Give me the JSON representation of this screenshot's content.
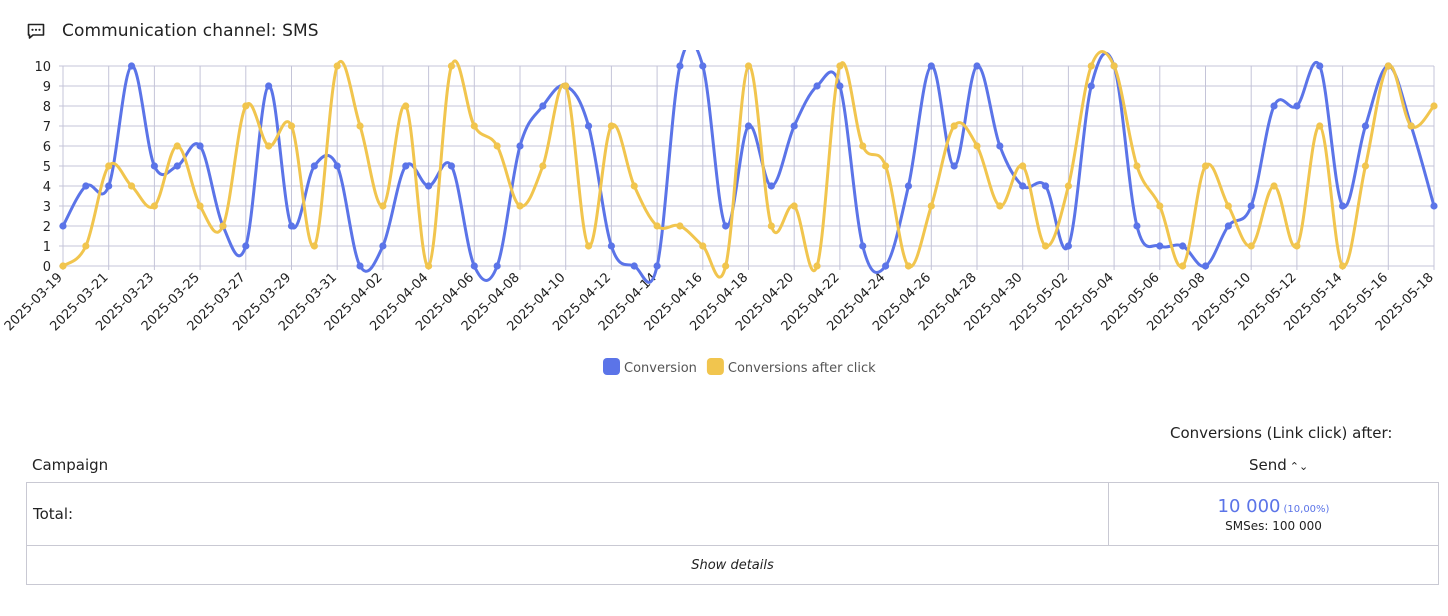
{
  "page": {
    "title": "Communication channel: SMS",
    "icon": "chat-message-icon"
  },
  "colors": {
    "conversion": "#5b74e8",
    "conversions_after_click": "#f1c54e",
    "grid": "#c4c4d8"
  },
  "chart_data": {
    "type": "line",
    "title": "",
    "xlabel": "",
    "ylabel": "",
    "ylim": [
      0,
      10
    ],
    "yticks": [
      0,
      1,
      2,
      3,
      4,
      5,
      6,
      7,
      8,
      9,
      10
    ],
    "grid": true,
    "legend_position": "bottom",
    "x": [
      "2025-03-19",
      "2025-03-20",
      "2025-03-21",
      "2025-03-22",
      "2025-03-23",
      "2025-03-24",
      "2025-03-25",
      "2025-03-26",
      "2025-03-27",
      "2025-03-28",
      "2025-03-29",
      "2025-03-30",
      "2025-03-31",
      "2025-04-01",
      "2025-04-02",
      "2025-04-03",
      "2025-04-04",
      "2025-04-05",
      "2025-04-06",
      "2025-04-07",
      "2025-04-08",
      "2025-04-09",
      "2025-04-10",
      "2025-04-11",
      "2025-04-12",
      "2025-04-13",
      "2025-04-14",
      "2025-04-15",
      "2025-04-16",
      "2025-04-17",
      "2025-04-18",
      "2025-04-19",
      "2025-04-20",
      "2025-04-21",
      "2025-04-22",
      "2025-04-23",
      "2025-04-24",
      "2025-04-25",
      "2025-04-26",
      "2025-04-27",
      "2025-04-28",
      "2025-04-29",
      "2025-04-30",
      "2025-05-01",
      "2025-05-02",
      "2025-05-03",
      "2025-05-04",
      "2025-05-05",
      "2025-05-06",
      "2025-05-07",
      "2025-05-08",
      "2025-05-09",
      "2025-05-10",
      "2025-05-11",
      "2025-05-12",
      "2025-05-13",
      "2025-05-14",
      "2025-05-15",
      "2025-05-16",
      "2025-05-17",
      "2025-05-18"
    ],
    "x_tick_labels": [
      "2025-03-19",
      "2025-03-21",
      "2025-03-23",
      "2025-03-25",
      "2025-03-27",
      "2025-03-29",
      "2025-03-31",
      "2025-04-02",
      "2025-04-04",
      "2025-04-06",
      "2025-04-08",
      "2025-04-10",
      "2025-04-12",
      "2025-04-14",
      "2025-04-16",
      "2025-04-18",
      "2025-04-20",
      "2025-04-22",
      "2025-04-24",
      "2025-04-26",
      "2025-04-28",
      "2025-04-30",
      "2025-05-02",
      "2025-05-04",
      "2025-05-06",
      "2025-05-08",
      "2025-05-10",
      "2025-05-12",
      "2025-05-14",
      "2025-05-16",
      "2025-05-18"
    ],
    "series": [
      {
        "name": "Conversion",
        "color": "#5b74e8",
        "values": [
          2,
          4,
          4,
          10,
          5,
          5,
          6,
          2,
          1,
          9,
          2,
          5,
          5,
          0,
          1,
          5,
          4,
          5,
          0,
          0,
          6,
          8,
          9,
          7,
          1,
          0,
          0,
          10,
          10,
          2,
          7,
          4,
          7,
          9,
          9,
          1,
          0,
          4,
          10,
          5,
          10,
          6,
          4,
          4,
          1,
          9,
          10,
          2,
          1,
          1,
          0,
          2,
          3,
          8,
          8,
          10,
          3,
          7,
          10,
          7,
          3
        ]
      },
      {
        "name": "Conversions after click",
        "color": "#f1c54e",
        "values": [
          0,
          1,
          5,
          4,
          3,
          6,
          3,
          2,
          8,
          6,
          7,
          1,
          10,
          7,
          3,
          8,
          0,
          10,
          7,
          6,
          3,
          5,
          9,
          1,
          7,
          4,
          2,
          2,
          1,
          0,
          10,
          2,
          3,
          0,
          10,
          6,
          5,
          0,
          3,
          7,
          6,
          3,
          5,
          1,
          4,
          10,
          10,
          5,
          3,
          0,
          5,
          3,
          1,
          4,
          1,
          7,
          0,
          5,
          10,
          7,
          8
        ]
      }
    ]
  },
  "summary": {
    "subheading": "Conversions (Link click) after:",
    "column_campaign": "Campaign",
    "column_send": "Send",
    "sort_icon": "sort-icon",
    "total_label": "Total:",
    "total_value": "10 000",
    "total_percent": "(10,00%)",
    "smses": "SMSes: 100 000",
    "show_details": "Show details"
  }
}
